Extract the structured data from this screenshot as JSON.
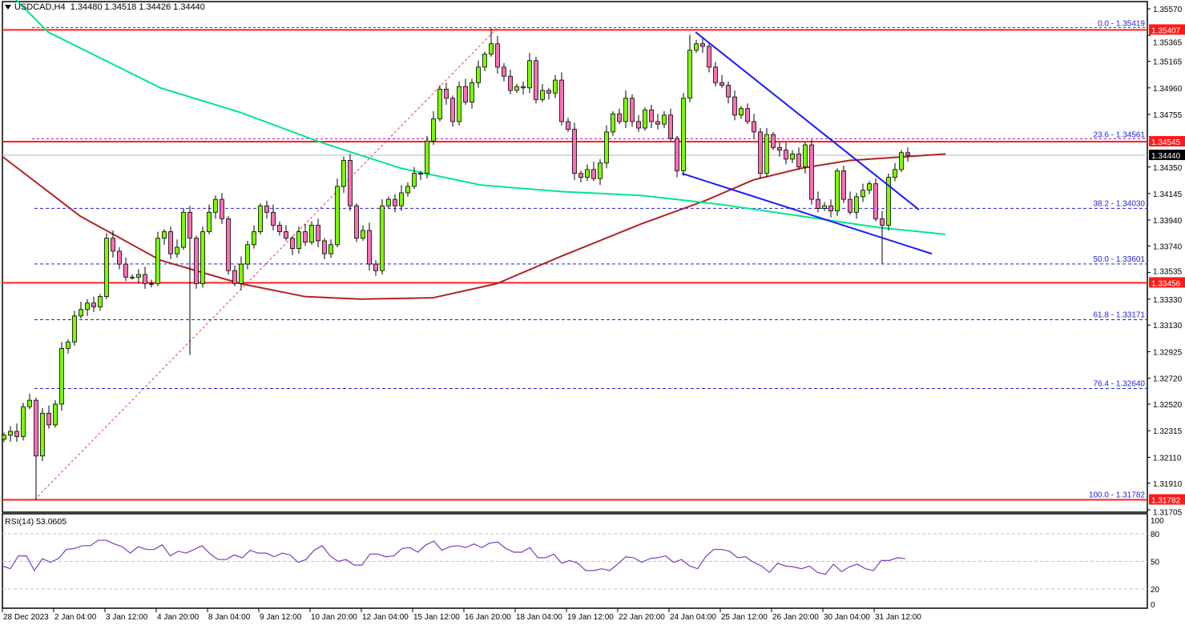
{
  "header": {
    "symbol": "USDCAD,H4",
    "ohlc": "1.34480 1.34518 1.34426 1.34440"
  },
  "rsi_panel": {
    "title": "RSI(14) 53.0605"
  },
  "colors": {
    "bull": "#7cfc00",
    "bear": "#ff6fb5",
    "ma_red": "#b22222",
    "ma_green": "#00e68a",
    "trend": "#1a1aff",
    "level": "#ff2020",
    "fib": "#2222dd",
    "rsi": "#7b3fbf"
  },
  "chart_data": {
    "type": "candlestick",
    "title": "USDCAD,H4",
    "ylim": [
      1.31705,
      1.3557
    ],
    "y_ticks": [
      "1.35570",
      "1.35365",
      "1.35165",
      "1.34960",
      "1.34755",
      "1.34350",
      "1.34145",
      "1.33940",
      "1.33740",
      "1.33535",
      "1.33330",
      "1.33130",
      "1.32925",
      "1.32720",
      "1.32520",
      "1.32315",
      "1.32110",
      "1.31910",
      "1.31705"
    ],
    "x_ticks": [
      {
        "i": -0.25,
        "label": "28 Dec 2023"
      },
      {
        "i": 7.75,
        "label": "2 Jan 04:00"
      },
      {
        "i": 15.75,
        "label": "3 Jan 12:00"
      },
      {
        "i": 23.75,
        "label": "4 Jan 20:00"
      },
      {
        "i": 31.75,
        "label": "8 Jan 04:00"
      },
      {
        "i": 39.75,
        "label": "9 Jan 12:00"
      },
      {
        "i": 47.75,
        "label": "10 Jan 20:00"
      },
      {
        "i": 55.75,
        "label": "12 Jan 04:00"
      },
      {
        "i": 63.75,
        "label": "15 Jan 12:00"
      },
      {
        "i": 71.75,
        "label": "16 Jan 20:00"
      },
      {
        "i": 79.75,
        "label": "18 Jan 04:00"
      },
      {
        "i": 87.75,
        "label": "19 Jan 12:00"
      },
      {
        "i": 95.75,
        "label": "22 Jan 20:00"
      },
      {
        "i": 103.75,
        "label": "24 Jan 04:00"
      },
      {
        "i": 111.75,
        "label": "25 Jan 12:00"
      },
      {
        "i": 119.75,
        "label": "26 Jan 20:00"
      },
      {
        "i": 127.75,
        "label": "30 Jan 04:00"
      },
      {
        "i": 135.75,
        "label": "31 Jan 12:00"
      }
    ],
    "closes": [
      1.3228,
      1.3231,
      1.3227,
      1.325,
      1.3255,
      1.3212,
      1.3245,
      1.3236,
      1.3252,
      1.3295,
      1.33,
      1.332,
      1.3325,
      1.333,
      1.3327,
      1.3335,
      1.338,
      1.337,
      1.336,
      1.335,
      1.335,
      1.3352,
      1.3345,
      1.3345,
      1.338,
      1.3385,
      1.3368,
      1.3373,
      1.34,
      1.338,
      1.3345,
      1.3385,
      1.34,
      1.341,
      1.3395,
      1.3355,
      1.3345,
      1.336,
      1.3375,
      1.3385,
      1.3405,
      1.34,
      1.339,
      1.3385,
      1.338,
      1.3372,
      1.3385,
      1.3377,
      1.339,
      1.3378,
      1.3368,
      1.3375,
      1.342,
      1.344,
      1.3405,
      1.338,
      1.3386,
      1.336,
      1.3355,
      1.3405,
      1.341,
      1.3405,
      1.3415,
      1.342,
      1.343,
      1.343,
      1.3455,
      1.3472,
      1.3495,
      1.3488,
      1.347,
      1.3497,
      1.3485,
      1.35,
      1.3512,
      1.3522,
      1.353,
      1.3512,
      1.3505,
      1.3494,
      1.3497,
      1.3496,
      1.3517,
      1.3487,
      1.3494,
      1.3492,
      1.3502,
      1.347,
      1.3464,
      1.343,
      1.3427,
      1.3433,
      1.3426,
      1.3438,
      1.3462,
      1.3476,
      1.347,
      1.3488,
      1.347,
      1.3465,
      1.3479,
      1.347,
      1.3468,
      1.3475,
      1.3457,
      1.3432,
      1.3488,
      1.3525,
      1.353,
      1.3528,
      1.3512,
      1.35,
      1.3498,
      1.3489,
      1.3475,
      1.348,
      1.347,
      1.3462,
      1.343,
      1.346,
      1.345,
      1.3448,
      1.3441,
      1.3445,
      1.3435,
      1.3452,
      1.341,
      1.3403,
      1.3405,
      1.3401,
      1.3432,
      1.341,
      1.34,
      1.3412,
      1.3417,
      1.3422,
      1.3395,
      1.339,
      1.3427,
      1.3433,
      1.3446,
      1.3444
    ],
    "wick_overrides": [
      {
        "i": 5,
        "low": 1.31782
      },
      {
        "i": 29,
        "low": 1.329
      },
      {
        "i": 76,
        "high": 1.35419
      },
      {
        "i": 107,
        "high": 1.3537
      },
      {
        "i": 137,
        "low": 1.336
      }
    ],
    "moving_averages": [
      {
        "name": "MA red",
        "color": "#b22222",
        "points": [
          [
            -0.6,
            1.3443
          ],
          [
            11.9,
            1.3397
          ],
          [
            24.4,
            1.3363
          ],
          [
            36.9,
            1.3345
          ],
          [
            46.9,
            1.3335
          ],
          [
            55.6,
            1.3333
          ],
          [
            66.9,
            1.3334
          ],
          [
            76.9,
            1.3345
          ],
          [
            86.9,
            1.3366
          ],
          [
            99.4,
            1.3391
          ],
          [
            109.4,
            1.3409
          ],
          [
            116.9,
            1.3425
          ],
          [
            124.4,
            1.3434
          ],
          [
            131.9,
            1.344
          ],
          [
            146.9,
            1.3445
          ]
        ]
      },
      {
        "name": "MA green",
        "color": "#00e68a",
        "points": [
          [
            1.9,
            1.3564
          ],
          [
            6.9,
            1.3539
          ],
          [
            24.4,
            1.3496
          ],
          [
            36.9,
            1.3477
          ],
          [
            49.4,
            1.3454
          ],
          [
            61.9,
            1.3434
          ],
          [
            74.4,
            1.3421
          ],
          [
            86.9,
            1.3416
          ],
          [
            99.4,
            1.3413
          ],
          [
            111.9,
            1.3406
          ],
          [
            124.4,
            1.3397
          ],
          [
            136.9,
            1.3388
          ],
          [
            146.9,
            1.3383
          ]
        ]
      }
    ],
    "trendlines": [
      {
        "name": "upper-trendline",
        "from": [
          107.9,
          1.3539
        ],
        "to": [
          142.75,
          1.3402
        ]
      },
      {
        "name": "lower-trendline",
        "from": [
          105.75,
          1.343
        ],
        "to": [
          144.75,
          1.3368
        ]
      }
    ],
    "fib_line": {
      "from": [
        4.75,
        1.31782
      ],
      "to": [
        76.9,
        1.35419
      ]
    },
    "fib_levels": [
      {
        "label": "0.0 - 1.35419",
        "price": 1.35419,
        "style": "magenta"
      },
      {
        "label": "23.6 - 1.34561",
        "price": 1.34561,
        "style": "magenta"
      },
      {
        "label": "38.2 - 1.34030",
        "price": 1.3403,
        "style": "blue"
      },
      {
        "label": "50.0 - 1.33601",
        "price": 1.33601,
        "style": "blue"
      },
      {
        "label": "61.8 - 1.33171",
        "price": 1.33171,
        "style": "blue"
      },
      {
        "label": "76.4 - 1.32640",
        "price": 1.3264,
        "style": "blue"
      },
      {
        "label": "100.0 - 1.31782",
        "price": 1.31782,
        "style": "blue"
      }
    ],
    "horizontal_levels": [
      {
        "price": 1.35407,
        "label": "1.35407"
      },
      {
        "price": 1.34545,
        "label": "1.34545"
      },
      {
        "price": 1.33456,
        "label": "1.33456"
      },
      {
        "price": 1.31782,
        "label": "1.31782"
      }
    ],
    "current_price": {
      "price": 1.3444,
      "label": "1.34440"
    },
    "rsi": {
      "ylim": [
        0,
        100
      ],
      "y_ticks": [
        "100",
        "80",
        "50",
        "20",
        "0"
      ],
      "levels": [
        80,
        50,
        20
      ],
      "values": [
        45,
        42,
        56,
        56,
        40,
        53,
        49,
        53,
        63,
        64,
        67,
        67,
        73,
        73,
        69,
        66,
        59,
        66,
        63,
        63,
        68,
        56,
        61,
        59,
        63,
        67,
        58,
        52,
        52,
        57,
        54,
        62,
        59,
        59,
        55,
        59,
        57,
        49,
        52,
        62,
        67,
        56,
        50,
        52,
        46,
        46,
        58,
        58,
        55,
        56,
        64,
        65,
        60,
        68,
        72,
        62,
        66,
        67,
        65,
        69,
        65,
        70,
        71,
        64,
        60,
        60,
        65,
        54,
        54,
        58,
        48,
        51,
        48,
        40,
        40,
        42,
        40,
        47,
        55,
        54,
        49,
        53,
        54,
        56,
        49,
        52,
        45,
        42,
        55,
        63,
        63,
        61,
        54,
        55,
        49,
        45,
        38,
        48,
        45,
        44,
        42,
        45,
        38,
        36,
        47,
        39,
        44,
        47,
        42,
        40,
        51,
        51,
        54,
        53
      ]
    }
  }
}
